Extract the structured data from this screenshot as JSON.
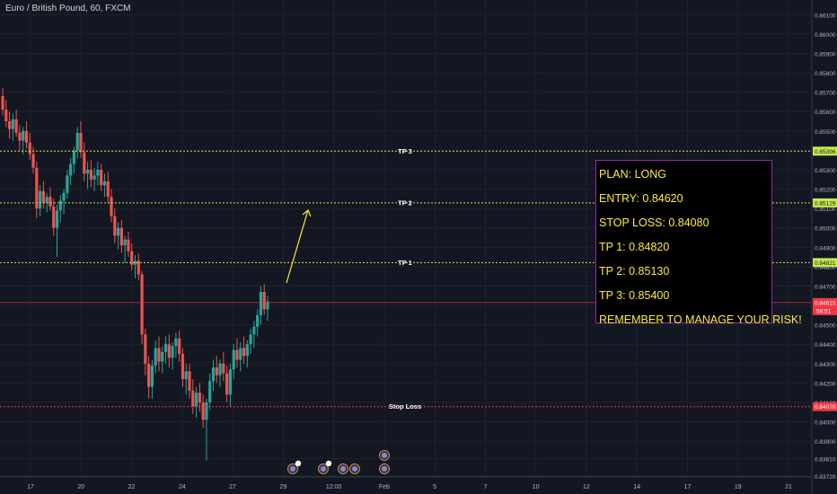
{
  "header": {
    "title": "Euro / British Pound, 60, FXCM"
  },
  "colors": {
    "background": "#131722",
    "grid": "#1e222d",
    "up_candle": "#26a69a",
    "down_candle": "#ef5350",
    "tp_line": "#c5e84f",
    "stop_line": "#f23645",
    "current_price": "#f23645",
    "arrow": "#ffeb3b",
    "plan_text": "#ffeb3b",
    "plan_border": "#9c27b0"
  },
  "plan": {
    "lines": [
      "PLAN: LONG",
      "ENTRY: 0.84620",
      "STOP LOSS: 0.84080",
      "TP 1: 0.84820",
      "TP 2: 0.85130",
      "TP 3: 0.85400",
      "REMEMBER TO MANAGE YOUR RISK!"
    ]
  },
  "chart_data": {
    "type": "candlestick",
    "title": "Euro / British Pound, 60, FXCM",
    "ylim": [
      0.8372,
      0.8612
    ],
    "y_ticks": [
      "0.86100",
      "0.86000",
      "0.85900",
      "0.85800",
      "0.85700",
      "0.85600",
      "0.85500",
      "0.85400",
      "0.85300",
      "0.85200",
      "0.85100",
      "0.85000",
      "0.84900",
      "0.84800",
      "0.84700",
      "0.84600",
      "0.84500",
      "0.84400",
      "0.84300",
      "0.84200",
      "0.84100",
      "0.84000",
      "0.83900",
      "0.83810",
      "0.83720"
    ],
    "x_ticks": [
      "17",
      "20",
      "22",
      "24",
      "27",
      "29",
      "12:00",
      "Feb",
      "5",
      "7",
      "10",
      "12",
      "14",
      "17",
      "19",
      "21"
    ],
    "horizontal_levels": [
      {
        "label": "TP 3",
        "price": 0.85396,
        "price_label": "0.85396",
        "kind": "tp"
      },
      {
        "label": "TP 2",
        "price": 0.85129,
        "price_label": "0.85129",
        "kind": "tp"
      },
      {
        "label": "TP 1",
        "price": 0.84821,
        "price_label": "0.84821",
        "kind": "tp"
      },
      {
        "label": "Stop Loss",
        "price": 0.84078,
        "price_label": "0.84078",
        "kind": "sl"
      }
    ],
    "current_price": {
      "price": 0.84615,
      "label": "0.84615",
      "countdown": "58:51"
    },
    "candles": [
      [
        0.8568,
        0.8572,
        0.8558,
        0.8561
      ],
      [
        0.8561,
        0.8566,
        0.8552,
        0.8555
      ],
      [
        0.8555,
        0.856,
        0.8546,
        0.8551
      ],
      [
        0.8551,
        0.8559,
        0.8545,
        0.8556
      ],
      [
        0.8556,
        0.8561,
        0.8547,
        0.8549
      ],
      [
        0.8549,
        0.8553,
        0.854,
        0.8545
      ],
      [
        0.8545,
        0.8552,
        0.8538,
        0.855
      ],
      [
        0.855,
        0.8555,
        0.8541,
        0.8544
      ],
      [
        0.8544,
        0.8549,
        0.8535,
        0.8538
      ],
      [
        0.8538,
        0.8542,
        0.8528,
        0.8531
      ],
      [
        0.8531,
        0.8534,
        0.8505,
        0.851
      ],
      [
        0.851,
        0.8522,
        0.8506,
        0.8519
      ],
      [
        0.8519,
        0.8524,
        0.851,
        0.8513
      ],
      [
        0.8513,
        0.8518,
        0.8508,
        0.8516
      ],
      [
        0.8516,
        0.8521,
        0.8509,
        0.8511
      ],
      [
        0.8511,
        0.8515,
        0.8496,
        0.85
      ],
      [
        0.85,
        0.8512,
        0.8485,
        0.8509
      ],
      [
        0.8509,
        0.8517,
        0.8503,
        0.8514
      ],
      [
        0.8514,
        0.852,
        0.8507,
        0.8518
      ],
      [
        0.8518,
        0.853,
        0.8515,
        0.8527
      ],
      [
        0.8527,
        0.8536,
        0.8522,
        0.8533
      ],
      [
        0.8533,
        0.8542,
        0.8528,
        0.854
      ],
      [
        0.854,
        0.8552,
        0.8536,
        0.8549
      ],
      [
        0.8549,
        0.8555,
        0.8536,
        0.8539
      ],
      [
        0.8539,
        0.8544,
        0.8524,
        0.8528
      ],
      [
        0.8528,
        0.8534,
        0.852,
        0.853
      ],
      [
        0.853,
        0.8535,
        0.8521,
        0.8525
      ],
      [
        0.8525,
        0.8531,
        0.8519,
        0.8527
      ],
      [
        0.8527,
        0.8534,
        0.8522,
        0.853
      ],
      [
        0.853,
        0.8533,
        0.8519,
        0.8522
      ],
      [
        0.8522,
        0.8528,
        0.8516,
        0.8524
      ],
      [
        0.8524,
        0.8529,
        0.8513,
        0.8516
      ],
      [
        0.8516,
        0.852,
        0.8503,
        0.8506
      ],
      [
        0.8506,
        0.851,
        0.8492,
        0.8496
      ],
      [
        0.8496,
        0.8503,
        0.8489,
        0.85
      ],
      [
        0.85,
        0.8504,
        0.8487,
        0.8491
      ],
      [
        0.8491,
        0.8496,
        0.8482,
        0.8494
      ],
      [
        0.8494,
        0.8498,
        0.8485,
        0.8488
      ],
      [
        0.8488,
        0.8492,
        0.8478,
        0.8481
      ],
      [
        0.8481,
        0.8486,
        0.8474,
        0.8483
      ],
      [
        0.8483,
        0.8487,
        0.8473,
        0.8476
      ],
      [
        0.8476,
        0.8478,
        0.844,
        0.8445
      ],
      [
        0.8445,
        0.8448,
        0.8424,
        0.843
      ],
      [
        0.843,
        0.8434,
        0.8412,
        0.8418
      ],
      [
        0.8418,
        0.8432,
        0.8412,
        0.8429
      ],
      [
        0.8429,
        0.8442,
        0.8425,
        0.8438
      ],
      [
        0.8438,
        0.8444,
        0.8426,
        0.8431
      ],
      [
        0.8431,
        0.8439,
        0.8425,
        0.8436
      ],
      [
        0.8436,
        0.8444,
        0.843,
        0.844
      ],
      [
        0.844,
        0.8445,
        0.8428,
        0.8433
      ],
      [
        0.8433,
        0.8441,
        0.8427,
        0.8439
      ],
      [
        0.8439,
        0.8446,
        0.8433,
        0.8443
      ],
      [
        0.8443,
        0.8447,
        0.8431,
        0.8435
      ],
      [
        0.8435,
        0.8438,
        0.8418,
        0.8422
      ],
      [
        0.8422,
        0.843,
        0.8414,
        0.8426
      ],
      [
        0.8426,
        0.843,
        0.8412,
        0.8416
      ],
      [
        0.8416,
        0.8422,
        0.8404,
        0.8408
      ],
      [
        0.8408,
        0.8418,
        0.8402,
        0.8415
      ],
      [
        0.8415,
        0.842,
        0.8405,
        0.841
      ],
      [
        0.841,
        0.8414,
        0.8397,
        0.8401
      ],
      [
        0.8401,
        0.8412,
        0.838,
        0.841
      ],
      [
        0.841,
        0.8425,
        0.8406,
        0.8421
      ],
      [
        0.8421,
        0.8432,
        0.8416,
        0.8428
      ],
      [
        0.8428,
        0.8434,
        0.842,
        0.8424
      ],
      [
        0.8424,
        0.8432,
        0.8418,
        0.843
      ],
      [
        0.843,
        0.8436,
        0.8421,
        0.8425
      ],
      [
        0.8425,
        0.8429,
        0.841,
        0.8414
      ],
      [
        0.8414,
        0.843,
        0.8408,
        0.8427
      ],
      [
        0.8427,
        0.844,
        0.8422,
        0.8437
      ],
      [
        0.8437,
        0.8443,
        0.8428,
        0.8432
      ],
      [
        0.8432,
        0.8441,
        0.8426,
        0.8438
      ],
      [
        0.8438,
        0.8444,
        0.843,
        0.8434
      ],
      [
        0.8434,
        0.8442,
        0.8428,
        0.844
      ],
      [
        0.844,
        0.8448,
        0.8435,
        0.8445
      ],
      [
        0.8445,
        0.8452,
        0.8438,
        0.8449
      ],
      [
        0.8449,
        0.8458,
        0.8444,
        0.8455
      ],
      [
        0.8455,
        0.847,
        0.845,
        0.8467
      ],
      [
        0.8467,
        0.8471,
        0.8455,
        0.8458
      ],
      [
        0.8458,
        0.8465,
        0.8452,
        0.8462
      ]
    ]
  }
}
